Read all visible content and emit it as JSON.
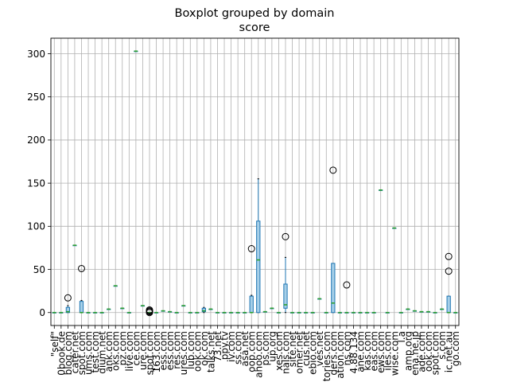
{
  "chart_data": {
    "type": "boxplot",
    "title": "Boxplot grouped by domain",
    "subtitle": "score",
    "ylim": [
      -15,
      318
    ],
    "yticks": [
      0,
      50,
      100,
      150,
      200,
      250,
      300
    ],
    "grid": true,
    "legend": "none",
    "colors": {
      "box": "#1f77b4",
      "median": "#2ca02c",
      "grid": "#b0b0b0",
      "outlier": "#000000"
    },
    "groups": [
      {
        "label": "\"self\"",
        "q1": 0,
        "median": 0,
        "q3": 0,
        "whisker_low": 0,
        "whisker_high": 0,
        "outliers": []
      },
      {
        "label": "0book.de",
        "q1": 0,
        "median": 0,
        "q3": 0,
        "whisker_low": 0,
        "whisker_high": 0,
        "outliers": []
      },
      {
        "label": "blog.com",
        "q1": 0,
        "median": 1,
        "q3": 6,
        "whisker_low": 0,
        "whisker_high": 8,
        "outliers": [
          17
        ]
      },
      {
        "label": "cater.net",
        "q1": 78,
        "median": 78,
        "q3": 78,
        "whisker_low": 78,
        "whisker_high": 78,
        "outliers": []
      },
      {
        "label": "spot.com",
        "q1": 0,
        "median": 0,
        "q3": 13,
        "whisker_low": 0,
        "whisker_high": 14,
        "outliers": [
          51
        ]
      },
      {
        "label": "ums.com",
        "q1": 0,
        "median": 0,
        "q3": 0,
        "whisker_low": 0,
        "whisker_high": 0,
        "outliers": []
      },
      {
        "label": "test.com",
        "q1": 0,
        "median": 0,
        "q3": 0,
        "whisker_low": 0,
        "whisker_high": 0,
        "outliers": []
      },
      {
        "label": "dium.net",
        "q1": 0,
        "median": 0,
        "q3": 0,
        "whisker_low": 0,
        "whisker_high": 0,
        "outliers": []
      },
      {
        "label": "ank.com",
        "q1": 4,
        "median": 4,
        "q3": 4,
        "whisker_low": 4,
        "whisker_high": 4,
        "outliers": []
      },
      {
        "label": "oks.com",
        "q1": 31,
        "median": 31,
        "q3": 31,
        "whisker_low": 31,
        "whisker_high": 31,
        "outliers": []
      },
      {
        "label": "pz.com",
        "q1": 5,
        "median": 5,
        "q3": 5,
        "whisker_low": 5,
        "whisker_high": 5,
        "outliers": []
      },
      {
        "label": "live.com",
        "q1": 0,
        "median": 0,
        "q3": 0,
        "whisker_low": 0,
        "whisker_high": 0,
        "outliers": []
      },
      {
        "label": "ce.com",
        "q1": 303,
        "median": 303,
        "q3": 303,
        "whisker_low": 303,
        "whisker_high": 303,
        "outliers": []
      },
      {
        "label": "ure.com",
        "q1": 8,
        "median": 8,
        "q3": 8,
        "whisker_low": 8,
        "whisker_high": 8,
        "outliers": []
      },
      {
        "label": "spot.com",
        "q1": 0,
        "median": 0,
        "q3": 0,
        "whisker_low": 0,
        "whisker_high": 0,
        "outliers": [
          0,
          1,
          2,
          3
        ]
      },
      {
        "label": "163.com",
        "q1": 0,
        "median": 0,
        "q3": 0,
        "whisker_low": 0,
        "whisker_high": 0,
        "outliers": []
      },
      {
        "label": "ess.com",
        "q1": 2,
        "median": 2,
        "q3": 2,
        "whisker_low": 2,
        "whisker_high": 2,
        "outliers": []
      },
      {
        "label": "ess.com",
        "q1": 1,
        "median": 1,
        "q3": 1,
        "whisker_low": 1,
        "whisker_high": 1,
        "outliers": []
      },
      {
        "label": "res.com",
        "q1": 0,
        "median": 0,
        "q3": 0,
        "whisker_low": 0,
        "whisker_high": 0,
        "outliers": []
      },
      {
        "label": "ures.com",
        "q1": 8,
        "median": 8,
        "q3": 8,
        "whisker_low": 8,
        "whisker_high": 8,
        "outliers": []
      },
      {
        "label": "lub.com",
        "q1": 0,
        "median": 0,
        "q3": 0,
        "whisker_low": 0,
        "whisker_high": 0,
        "outliers": []
      },
      {
        "label": "ook.com",
        "q1": 0,
        "median": 0,
        "q3": 0,
        "whisker_low": 0,
        "whisker_high": 0,
        "outliers": []
      },
      {
        "label": "ok.com",
        "q1": 1,
        "median": 2,
        "q3": 5,
        "whisker_low": 0,
        "whisker_high": 6,
        "outliers": []
      },
      {
        "label": "talks.net",
        "q1": 4,
        "median": 4,
        "q3": 4,
        "whisker_low": 4,
        "whisker_high": 4,
        "outliers": []
      },
      {
        "label": "73.net",
        "q1": 0,
        "median": 0,
        "q3": 0,
        "whisker_low": 0,
        "whisker_high": 0,
        "outliers": []
      },
      {
        "label": "ppy.tv",
        "q1": 0,
        "median": 0,
        "q3": 0,
        "whisker_low": 0,
        "whisker_high": 0,
        "outliers": []
      },
      {
        "label": "iv.com",
        "q1": 0,
        "median": 0,
        "q3": 0,
        "whisker_low": 0,
        "whisker_high": 0,
        "outliers": []
      },
      {
        "label": "ss.com",
        "q1": 0,
        "median": 0,
        "q3": 0,
        "whisker_low": 0,
        "whisker_high": 0,
        "outliers": []
      },
      {
        "label": "asa.net",
        "q1": 0,
        "median": 0,
        "q3": 0,
        "whisker_low": 0,
        "whisker_high": 0,
        "outliers": []
      },
      {
        "label": "oop.com",
        "q1": 0,
        "median": 0,
        "q3": 19,
        "whisker_low": 0,
        "whisker_high": 20,
        "outliers": [
          74
        ]
      },
      {
        "label": "ahoo.com",
        "q1": 0,
        "median": 61,
        "q3": 106,
        "whisker_low": 0,
        "whisker_high": 155,
        "outliers": []
      },
      {
        "label": "ps.com",
        "q1": 1,
        "median": 1,
        "q3": 1,
        "whisker_low": 1,
        "whisker_high": 1,
        "outliers": []
      },
      {
        "label": "up.org",
        "q1": 5,
        "median": 5,
        "q3": 5,
        "whisker_low": 5,
        "whisker_high": 5,
        "outliers": []
      },
      {
        "label": "xes.com",
        "q1": 0,
        "median": 0,
        "q3": 0,
        "whisker_low": 0,
        "whisker_high": 0,
        "outliers": []
      },
      {
        "label": "nals.com",
        "q1": 5,
        "median": 9,
        "q3": 33,
        "whisker_low": 0,
        "whisker_high": 64,
        "outliers": [
          88
        ]
      },
      {
        "label": "site.net",
        "q1": 0,
        "median": 0,
        "q3": 0,
        "whisker_low": 0,
        "whisker_high": 0,
        "outliers": []
      },
      {
        "label": "omer.net",
        "q1": 0,
        "median": 0,
        "q3": 0,
        "whisker_low": 0,
        "whisker_high": 0,
        "outliers": []
      },
      {
        "label": "cus.net",
        "q1": 0,
        "median": 0,
        "q3": 0,
        "whisker_low": 0,
        "whisker_high": 0,
        "outliers": []
      },
      {
        "label": "ebio.com",
        "q1": 0,
        "median": 0,
        "q3": 0,
        "whisker_low": 0,
        "whisker_high": 0,
        "outliers": []
      },
      {
        "label": "ves.net",
        "q1": 16,
        "median": 16,
        "q3": 16,
        "whisker_low": 16,
        "whisker_high": 16,
        "outliers": []
      },
      {
        "label": "tories.com",
        "q1": 0,
        "median": 0,
        "q3": 0,
        "whisker_low": 0,
        "whisker_high": 0,
        "outliers": []
      },
      {
        "label": "ders.com",
        "q1": 0,
        "median": 11,
        "q3": 57,
        "whisker_low": 0,
        "whisker_high": 57,
        "outliers": [
          165
        ]
      },
      {
        "label": "ation.com",
        "q1": 0,
        "median": 0,
        "q3": 0,
        "whisker_low": 0,
        "whisker_high": 0,
        "outliers": []
      },
      {
        "label": "ns.com",
        "q1": 0,
        "median": 0,
        "q3": 0,
        "whisker_low": 0,
        "whisker_high": 0,
        "outliers": [
          32
        ]
      },
      {
        "label": "4.88.134",
        "q1": 0,
        "median": 0,
        "q3": 0,
        "whisker_low": 0,
        "whisker_high": 0,
        "outliers": []
      },
      {
        "label": "ane.com",
        "q1": 0,
        "median": 0,
        "q3": 0,
        "whisker_low": 0,
        "whisker_high": 0,
        "outliers": []
      },
      {
        "label": "kas.com",
        "q1": 0,
        "median": 0,
        "q3": 0,
        "whisker_low": 0,
        "whisker_high": 0,
        "outliers": []
      },
      {
        "label": "eas.com",
        "q1": 0,
        "median": 0,
        "q3": 0,
        "whisker_low": 0,
        "whisker_high": 0,
        "outliers": []
      },
      {
        "label": "ews.com",
        "q1": 142,
        "median": 142,
        "q3": 142,
        "whisker_low": 142,
        "whisker_high": 142,
        "outliers": []
      },
      {
        "label": "iles.com",
        "q1": 0,
        "median": 0,
        "q3": 0,
        "whisker_low": 0,
        "whisker_high": 0,
        "outliers": []
      },
      {
        "label": "wise.com",
        "q1": 98,
        "median": 98,
        "q3": 98,
        "whisker_low": 98,
        "whisker_high": 98,
        "outliers": []
      },
      {
        "label": "l.a",
        "q1": 0,
        "median": 0,
        "q3": 0,
        "whisker_low": 0,
        "whisker_high": 0,
        "outliers": []
      },
      {
        "label": "amp.org",
        "q1": 4,
        "median": 4,
        "q3": 4,
        "whisker_low": 4,
        "whisker_high": 4,
        "outliers": []
      },
      {
        "label": "ena.ne.jp",
        "q1": 2,
        "median": 2,
        "q3": 2,
        "whisker_low": 2,
        "whisker_high": 2,
        "outliers": []
      },
      {
        "label": "ade.com",
        "q1": 1,
        "median": 1,
        "q3": 1,
        "whisker_low": 1,
        "whisker_high": 1,
        "outliers": []
      },
      {
        "label": "ook.com",
        "q1": 1,
        "median": 1,
        "q3": 1,
        "whisker_low": 1,
        "whisker_high": 1,
        "outliers": []
      },
      {
        "label": "spot.com",
        "q1": 0,
        "median": 0,
        "q3": 0,
        "whisker_low": 0,
        "whisker_high": 0,
        "outliers": []
      },
      {
        "label": "s.com",
        "q1": 4,
        "median": 4,
        "q3": 4,
        "whisker_low": 4,
        "whisker_high": 4,
        "outliers": []
      },
      {
        "label": "ic.net.au",
        "q1": 0,
        "median": 0,
        "q3": 19,
        "whisker_low": 0,
        "whisker_high": 19,
        "outliers": [
          48,
          65
        ]
      },
      {
        "label": "go.com",
        "q1": 0,
        "median": 0,
        "q3": 0,
        "whisker_low": 0,
        "whisker_high": 0,
        "outliers": []
      }
    ]
  }
}
